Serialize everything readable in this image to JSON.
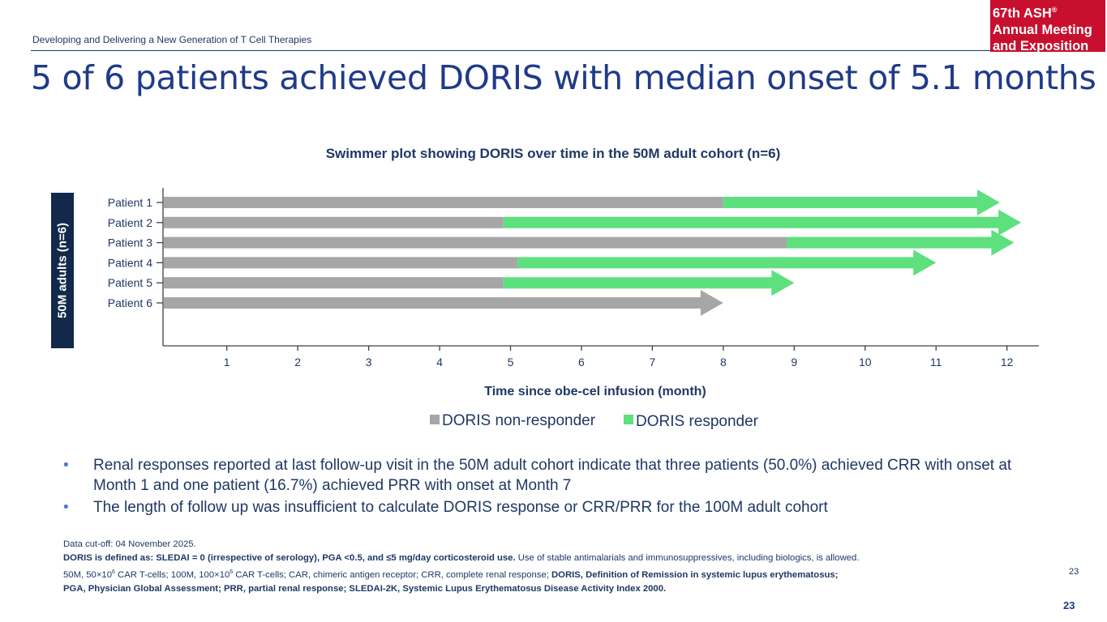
{
  "header": {
    "subtitle": "Developing and Delivering a New Generation of T Cell Therapies",
    "logo_line1": "67th ASH",
    "logo_reg": "®",
    "logo_line2": "Annual Meeting",
    "logo_line3": "and Exposition"
  },
  "title": "5 of 6 patients achieved DORIS with median onset of 5.1 months",
  "y_band_label": "50M adults (n=6)",
  "colors": {
    "non_responder": "#a6a6a6",
    "responder": "#5ee07f",
    "title": "#1f3a8a",
    "navy": "#13294b"
  },
  "chart_data": {
    "type": "swimmer",
    "title": "Swimmer plot showing DORIS over time in the 50M adult cohort (n=6)",
    "xlabel": "Time since obe-cel infusion (month)",
    "xlim": [
      0.1,
      12.45
    ],
    "xticks": [
      1,
      2,
      3,
      4,
      5,
      6,
      7,
      8,
      9,
      10,
      11,
      12
    ],
    "legend": [
      {
        "label": "DORIS non-responder",
        "series": "non_responder"
      },
      {
        "label": "DORIS responder",
        "series": "responder"
      }
    ],
    "patients": [
      {
        "label": "Patient 1",
        "onset": 8.0,
        "end": 11.9
      },
      {
        "label": "Patient 2",
        "onset": 4.9,
        "end": 12.2
      },
      {
        "label": "Patient 3",
        "onset": 8.9,
        "end": 12.1
      },
      {
        "label": "Patient 4",
        "onset": 5.1,
        "end": 11.0
      },
      {
        "label": "Patient 5",
        "onset": 4.9,
        "end": 9.0
      },
      {
        "label": "Patient 6",
        "onset": null,
        "end": 8.0
      }
    ]
  },
  "bullets": [
    "Renal responses reported at last follow-up visit in the 50M adult cohort indicate that three patients (50.0%) achieved CRR with onset at Month 1 and one patient (16.7%) achieved PRR with onset at Month 7",
    "The length of follow up was insufficient to calculate DORIS response or CRR/PRR for the 100M adult cohort"
  ],
  "footnotes": {
    "cutoff": "Data cut-off: 04 November 2025.",
    "doris_def_bold": "DORIS is defined as: SLEDAI = 0 (irrespective of serology), PGA <0.5, and ≤5 mg/day corticosteroid use.",
    "doris_def_rest": " Use of stable antimalarials and immunosuppressives, including biologics, is allowed.",
    "abbrev_a": "50M, 50×10",
    "abbrev_sup": "6",
    "abbrev_b": " CAR T-cells; 100M, 100×10",
    "abbrev_c": " CAR T-cells; CAR, chimeric antigen receptor; CRR, complete renal response; ",
    "abbrev_bold1": "DORIS, Definition of Remission in systemic lupus erythematosus;",
    "abbrev_bold2": "PGA, Physician Global Assessment; PRR, partial renal response; SLEDAI-2K, Systemic Lupus Erythematosus Disease Activity Index 2000."
  },
  "page_number": "23"
}
